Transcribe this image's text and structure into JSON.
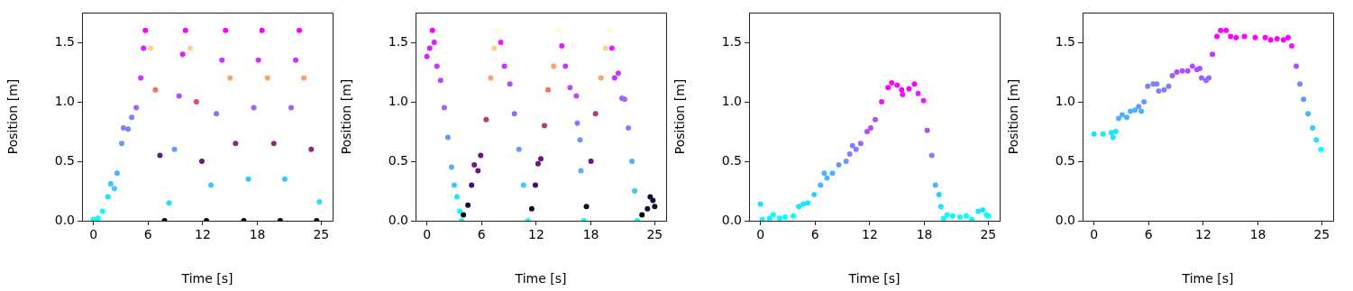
{
  "chart_data": [
    {
      "type": "scatter",
      "xlabel": "Time [s]",
      "ylabel": "Position [m]",
      "marker": "circle",
      "xlim": [
        -1.25,
        26.25
      ],
      "ylim": [
        0,
        1.75
      ],
      "xticks": [
        0,
        6,
        12,
        18,
        25
      ],
      "yticks": [
        {
          "value": 0,
          "label": "0.0"
        },
        {
          "value": 0.5,
          "label": "0.5"
        },
        {
          "value": 1,
          "label": "1.0"
        },
        {
          "value": 1.5,
          "label": "1.5"
        }
      ],
      "x": [
        0,
        0.5,
        1.0,
        1.6,
        1.9,
        2.3,
        2.6,
        3.1,
        3.3,
        3.8,
        4.2,
        4.7,
        5.2,
        5.5,
        5.7,
        6.3,
        6.8,
        7.3,
        7.8,
        8.3,
        8.9,
        9.4,
        9.8,
        10.1,
        10.6,
        11.3,
        11.9,
        12.4,
        12.9,
        13.5,
        14.1,
        14.5,
        15,
        15.6,
        16.5,
        17,
        17.6,
        18.1,
        18.5,
        19.1,
        19.8,
        20.5,
        21,
        21.7,
        22.2,
        22.6,
        23.1,
        23.9,
        24.5,
        24.8
      ],
      "values": [
        0.01,
        0.02,
        0.08,
        0.2,
        0.31,
        0.27,
        0.4,
        0.65,
        0.78,
        0.77,
        0.87,
        0.95,
        1.2,
        1.45,
        1.6,
        1.45,
        1.1,
        0.55,
        0,
        0.15,
        0.6,
        1.05,
        1.4,
        1.6,
        1.45,
        1.0,
        0.5,
        0,
        0.3,
        0.9,
        1.35,
        1.6,
        1.2,
        0.65,
        0,
        0.35,
        0.95,
        1.35,
        1.6,
        1.2,
        0.65,
        0,
        0.35,
        0.95,
        1.35,
        1.6,
        1.2,
        0.6,
        0,
        0.16
      ],
      "colors": [
        "#00ffff",
        "#00ffff",
        "#00ffff",
        "#1ae5ff",
        "#33ccff",
        "#33ccff",
        "#4db2ff",
        "#6699ff",
        "#807fff",
        "#807fff",
        "#807fff",
        "#9966ff",
        "#cc33ff",
        "#e51aff",
        "#ff00ff",
        "#fecf92",
        "#f7705c",
        "#641a80",
        "#000004",
        "#1ae5ff",
        "#6699ff",
        "#b24dff",
        "#e51aff",
        "#ff00ff",
        "#fecf92",
        "#de4968",
        "#641a80",
        "#000004",
        "#33ccff",
        "#9966ff",
        "#cc33ff",
        "#ff00ff",
        "#fe9f6d",
        "#8c2981",
        "#000004",
        "#33ccff",
        "#9966ff",
        "#cc33ff",
        "#ff00ff",
        "#fe9f6d",
        "#8c2981",
        "#000004",
        "#33ccff",
        "#9966ff",
        "#cc33ff",
        "#ff00ff",
        "#fe9f6d",
        "#8c2981",
        "#000004",
        "#1ae5ff"
      ]
    },
    {
      "type": "scatter",
      "xlabel": "Time [s]",
      "ylabel": "Position [m]",
      "marker": "circle",
      "xlim": [
        -1.25,
        26.25
      ],
      "ylim": [
        0,
        1.75
      ],
      "xticks": [
        0,
        6,
        12,
        18,
        25
      ],
      "yticks": [
        {
          "value": 0,
          "label": "0.0"
        },
        {
          "value": 0.5,
          "label": "0.5"
        },
        {
          "value": 1,
          "label": "1.0"
        },
        {
          "value": 1.5,
          "label": "1.5"
        }
      ],
      "x": [
        0,
        0.3,
        0.6,
        0.8,
        1.1,
        1.5,
        1.9,
        2.3,
        2.7,
        3.0,
        3.3,
        3.6,
        3.8,
        4.0,
        4.5,
        4.9,
        5.2,
        5.6,
        5.9,
        6.5,
        7.0,
        7.4,
        7.7,
        8.1,
        8.5,
        9.1,
        9.6,
        10.1,
        10.6,
        11.1,
        11.5,
        11.9,
        12.2,
        12.5,
        12.9,
        13.3,
        13.9,
        14.4,
        14.8,
        15.2,
        15.7,
        16.4,
        16.5,
        16.8,
        16.9,
        17.2,
        17.5,
        18.0,
        18.5,
        19.1,
        19.6,
        20.0,
        20.3,
        20.6,
        21.0,
        21.4,
        21.7,
        22.1,
        22.5,
        22.8,
        23.1,
        23.6,
        24.2,
        24.5,
        24.8,
        25
      ],
      "values": [
        1.38,
        1.45,
        1.6,
        1.5,
        1.3,
        1.18,
        0.95,
        0.7,
        0.45,
        0.3,
        0.2,
        0.08,
        0,
        0.05,
        0.13,
        0.3,
        0.47,
        0.42,
        0.55,
        0.85,
        1.2,
        1.45,
        1.6,
        1.5,
        1.3,
        1.15,
        0.9,
        0.6,
        0.3,
        0,
        0.1,
        0.3,
        0.48,
        0.52,
        0.8,
        1.1,
        1.3,
        1.6,
        1.47,
        1.3,
        1.12,
        1.05,
        0.82,
        0.68,
        0.42,
        0,
        0.12,
        0.5,
        0.9,
        1.2,
        1.45,
        1.6,
        1.45,
        1.2,
        1.24,
        1.03,
        1.02,
        0.78,
        0.5,
        0.25,
        0,
        0.05,
        0.1,
        0.2,
        0.17,
        0.12
      ],
      "colors": [
        "#e51aff",
        "#e51aff",
        "#ff00ff",
        "#e51aff",
        "#cc33ff",
        "#b24dff",
        "#9966ff",
        "#6699ff",
        "#4db2ff",
        "#33ccff",
        "#1ae5ff",
        "#00ffff",
        "#00ffff",
        "#000004",
        "#140e36",
        "#3b0f70",
        "#641a80",
        "#641a80",
        "#641a80",
        "#b73779",
        "#fe9f6d",
        "#fecf92",
        "#fcfdbf",
        "#e51aff",
        "#cc33ff",
        "#b24dff",
        "#9966ff",
        "#6699ff",
        "#33ccff",
        "#00ffff",
        "#140e36",
        "#3b0f70",
        "#641a80",
        "#641a80",
        "#b73779",
        "#f7705c",
        "#fe9f6d",
        "#fcfdbf",
        "#e51aff",
        "#cc33ff",
        "#b24dff",
        "#b24dff",
        "#807fff",
        "#6699ff",
        "#4db2ff",
        "#00ffff",
        "#140e36",
        "#641a80",
        "#b73779",
        "#fe9f6d",
        "#fecf92",
        "#fcfdbf",
        "#e51aff",
        "#cc33ff",
        "#cc33ff",
        "#9966ff",
        "#9966ff",
        "#807fff",
        "#4db2ff",
        "#33ccff",
        "#00ffff",
        "#000004",
        "#140e36",
        "#140e36",
        "#140e36",
        "#140e36"
      ]
    },
    {
      "type": "scatter",
      "xlabel": "Time [s]",
      "ylabel": "Position [m]",
      "marker": "circle",
      "xlim": [
        -1.25,
        26.25
      ],
      "ylim": [
        0,
        1.75
      ],
      "xticks": [
        0,
        6,
        12,
        18,
        25
      ],
      "yticks": [
        {
          "value": 0,
          "label": "0.0"
        },
        {
          "value": 0.5,
          "label": "0.5"
        },
        {
          "value": 1,
          "label": "1.0"
        },
        {
          "value": 1.5,
          "label": "1.5"
        }
      ],
      "x": [
        0,
        0.2,
        1.0,
        1.4,
        2.1,
        2.7,
        3.6,
        4.2,
        4.7,
        5.2,
        5.9,
        6.6,
        7.0,
        7.3,
        7.9,
        8.6,
        9.4,
        9.8,
        10.1,
        10.5,
        11.0,
        11.7,
        12.1,
        12.6,
        13.3,
        14.0,
        14.4,
        15.0,
        15.5,
        15.6,
        16.3,
        16.9,
        17.3,
        17.9,
        18.3,
        18.8,
        19.2,
        19.6,
        19.8,
        20.1,
        20.5,
        21.1,
        21.9,
        22.6,
        23.2,
        23.9,
        24.4,
        24.8,
        25
      ],
      "values": [
        0.14,
        0.01,
        0.02,
        0.05,
        0.02,
        0.03,
        0.04,
        0.12,
        0.14,
        0.15,
        0.22,
        0.3,
        0.4,
        0.36,
        0.4,
        0.47,
        0.5,
        0.56,
        0.63,
        0.6,
        0.65,
        0.75,
        0.78,
        0.85,
        1.0,
        1.12,
        1.16,
        1.14,
        1.1,
        1.06,
        1.11,
        1.15,
        1.07,
        1.01,
        0.76,
        0.55,
        0.3,
        0.22,
        0.12,
        0.02,
        0.05,
        0.04,
        0.03,
        0.04,
        0.01,
        0.08,
        0.09,
        0.05,
        0.04
      ],
      "colors": [
        "#1ae5ff",
        "#00ffff",
        "#00ffff",
        "#00ffff",
        "#00ffff",
        "#00ffff",
        "#00ffff",
        "#1ae5ff",
        "#1ae5ff",
        "#1ae5ff",
        "#33ccff",
        "#4db2ff",
        "#4db2ff",
        "#4db2ff",
        "#4db2ff",
        "#6699ff",
        "#6699ff",
        "#807fff",
        "#807fff",
        "#807fff",
        "#9966ff",
        "#b24dff",
        "#b24dff",
        "#b24dff",
        "#e51aff",
        "#ff00ff",
        "#ff00ff",
        "#ff00ff",
        "#ff00ff",
        "#e51aff",
        "#ff00ff",
        "#ff00ff",
        "#e51aff",
        "#e51aff",
        "#b24dff",
        "#807fff",
        "#4db2ff",
        "#33ccff",
        "#1ae5ff",
        "#00ffff",
        "#00ffff",
        "#00ffff",
        "#00ffff",
        "#00ffff",
        "#00ffff",
        "#1ae5ff",
        "#1ae5ff",
        "#00ffff",
        "#00ffff"
      ]
    },
    {
      "type": "scatter",
      "xlabel": "Time [s]",
      "ylabel": "Position [m]",
      "marker": "circle",
      "xlim": [
        -1.25,
        26.25
      ],
      "ylim": [
        0,
        1.75
      ],
      "xticks": [
        0,
        6,
        12,
        18,
        25
      ],
      "yticks": [
        {
          "value": 0,
          "label": "0.0"
        },
        {
          "value": 0.5,
          "label": "0.5"
        },
        {
          "value": 1,
          "label": "1.0"
        },
        {
          "value": 1.5,
          "label": "1.5"
        }
      ],
      "x": [
        0,
        1.0,
        1.9,
        2.1,
        2.4,
        2.7,
        3.1,
        3.6,
        4.0,
        4.5,
        4.9,
        5.2,
        5.5,
        5.9,
        6.5,
        6.9,
        7.1,
        7.7,
        8.2,
        8.6,
        9.1,
        9.7,
        10.3,
        10.8,
        11.3,
        11.6,
        11.8,
        12.3,
        12.6,
        13.0,
        13.5,
        13.9,
        14.5,
        15.0,
        15.6,
        16.5,
        17.7,
        18.8,
        19.4,
        20.1,
        20.8,
        21.3,
        21.7,
        22.2,
        22.6,
        23.0,
        23.5,
        24.0,
        24.4,
        24.9
      ],
      "values": [
        0.73,
        0.73,
        0.74,
        0.7,
        0.75,
        0.86,
        0.89,
        0.87,
        0.92,
        0.93,
        0.96,
        0.92,
        1.0,
        1.13,
        1.15,
        1.15,
        1.09,
        1.1,
        1.13,
        1.22,
        1.25,
        1.26,
        1.26,
        1.3,
        1.27,
        1.28,
        1.2,
        1.18,
        1.2,
        1.4,
        1.55,
        1.6,
        1.6,
        1.55,
        1.54,
        1.55,
        1.54,
        1.54,
        1.52,
        1.53,
        1.52,
        1.54,
        1.47,
        1.3,
        1.15,
        1.02,
        0.9,
        0.78,
        0.68,
        0.6
      ],
      "colors": [
        "#1ae5ff",
        "#1ae5ff",
        "#1ae5ff",
        "#1ae5ff",
        "#1ae5ff",
        "#4db2ff",
        "#4db2ff",
        "#4db2ff",
        "#4db2ff",
        "#4db2ff",
        "#6699ff",
        "#4db2ff",
        "#6699ff",
        "#807fff",
        "#807fff",
        "#807fff",
        "#807fff",
        "#807fff",
        "#807fff",
        "#9966ff",
        "#b24dff",
        "#b24dff",
        "#b24dff",
        "#b24dff",
        "#b24dff",
        "#b24dff",
        "#9966ff",
        "#9966ff",
        "#9966ff",
        "#cc33ff",
        "#ff00ff",
        "#ff00ff",
        "#ff00ff",
        "#ff00ff",
        "#ff00ff",
        "#ff00ff",
        "#ff00ff",
        "#ff00ff",
        "#ff00ff",
        "#ff00ff",
        "#ff00ff",
        "#ff00ff",
        "#e51aff",
        "#b24dff",
        "#807fff",
        "#6699ff",
        "#4db2ff",
        "#33ccff",
        "#1ae5ff",
        "#00ffff"
      ]
    }
  ]
}
